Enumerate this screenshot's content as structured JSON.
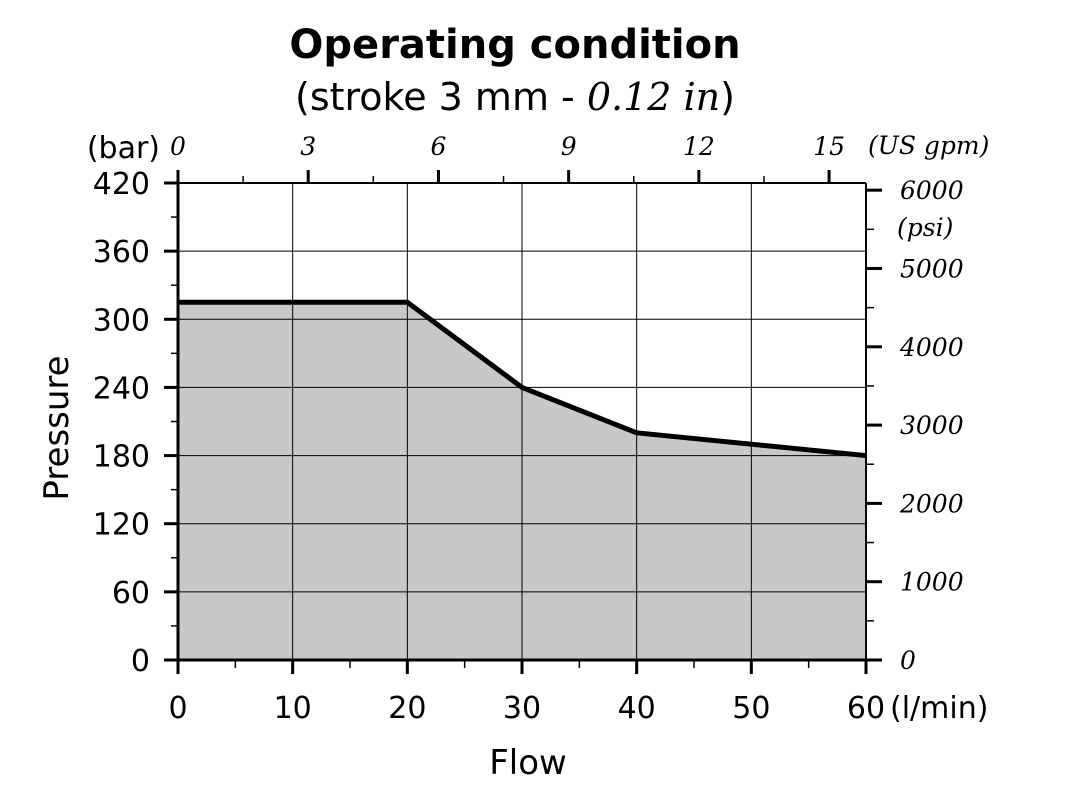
{
  "chart_data": {
    "type": "area",
    "title": "Operating condition",
    "subtitle_main": "(stroke 3 mm - ",
    "subtitle_alt": "0.12 in",
    "subtitle_close": ")",
    "xlabel": "Flow",
    "ylabel": "Pressure",
    "x_unit": "(l/min)",
    "y_unit": "(bar)",
    "x2_unit": "(US gpm)",
    "y2_unit": "(psi)",
    "xlim": [
      0,
      60
    ],
    "ylim": [
      0,
      420
    ],
    "x_ticks": [
      0,
      10,
      20,
      30,
      40,
      50,
      60
    ],
    "y_ticks": [
      0,
      60,
      120,
      180,
      240,
      300,
      360,
      420
    ],
    "x2_ticks": [
      0,
      3,
      6,
      9,
      12,
      15
    ],
    "y2_ticks": [
      0,
      1000,
      2000,
      3000,
      4000,
      5000,
      6000
    ],
    "grid": true,
    "fill_color": "#c8c8c8",
    "line_color": "#000000",
    "series": [
      {
        "x": [
          0,
          20,
          30,
          40,
          60
        ],
        "y": [
          315,
          315,
          240,
          200,
          180
        ]
      }
    ]
  }
}
